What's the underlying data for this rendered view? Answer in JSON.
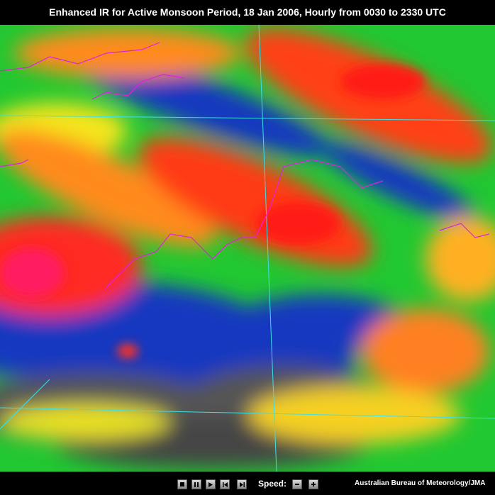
{
  "header": {
    "title": "Enhanced IR for Active Monsoon Period, 18 Jan 2006, Hourly from 0030 to 2330 UTC"
  },
  "controls": {
    "speed_label": "Speed:"
  },
  "footer": {
    "credit": "Australian Bureau of Meteorology/JMA"
  }
}
